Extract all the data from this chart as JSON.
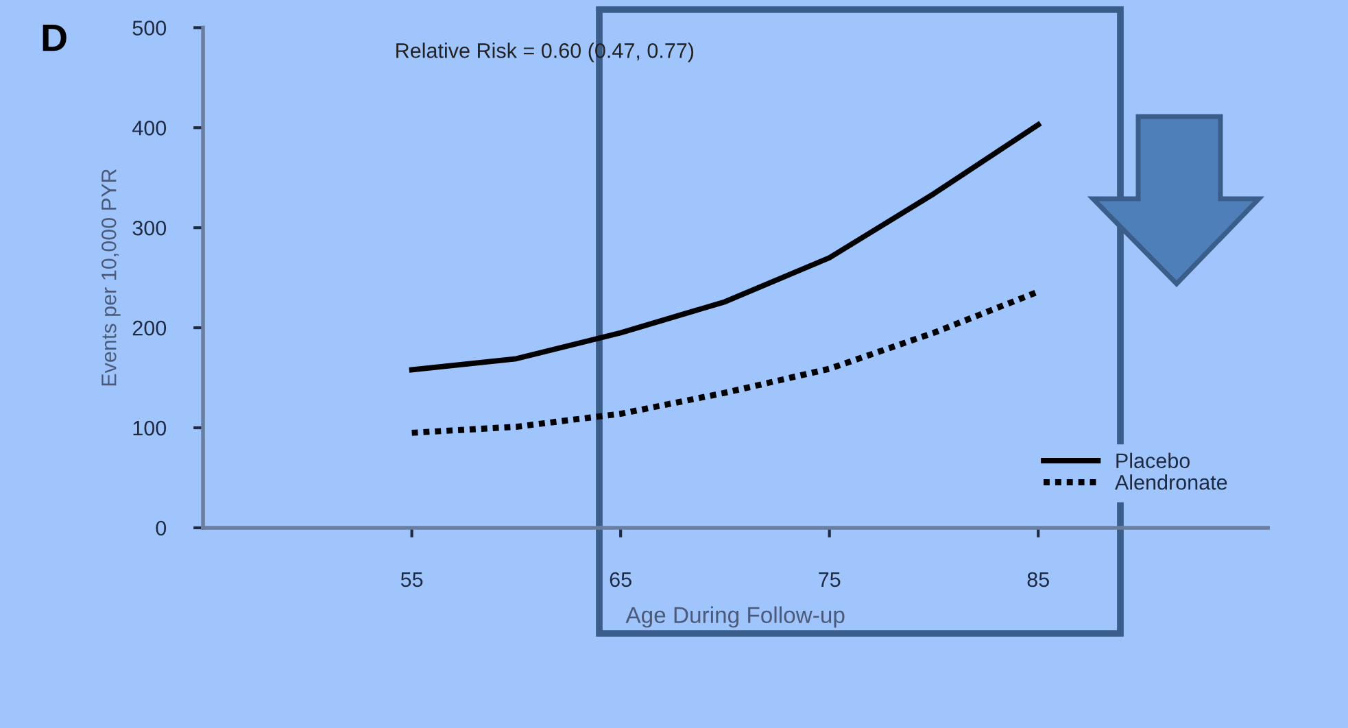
{
  "chart_data": {
    "type": "line",
    "title": "D",
    "xlabel": "Age During Follow-up",
    "ylabel": "Events per 10,000 PYR",
    "annotations": [
      "Relative Risk = 0.60 (0.47, 0.77)"
    ],
    "x": [
      55,
      60,
      65,
      70,
      75,
      80,
      85
    ],
    "series": [
      {
        "name": "Placebo",
        "color": "#000000",
        "line_style": "solid",
        "values": [
          158,
          169,
          195,
          226,
          270,
          334,
          403
        ]
      },
      {
        "name": "Alendronate",
        "color": "#000000",
        "line_style": "dotted",
        "values": [
          95,
          101,
          114,
          135,
          159,
          195,
          236
        ]
      }
    ],
    "xlim": [
      45,
      96
    ],
    "xticks": [
      55,
      65,
      75,
      85
    ],
    "ylim": [
      0,
      500
    ],
    "yticks": [
      0,
      100,
      200,
      300,
      400,
      500
    ],
    "grid": false,
    "legend": "bottom right",
    "marker": "none"
  }
}
